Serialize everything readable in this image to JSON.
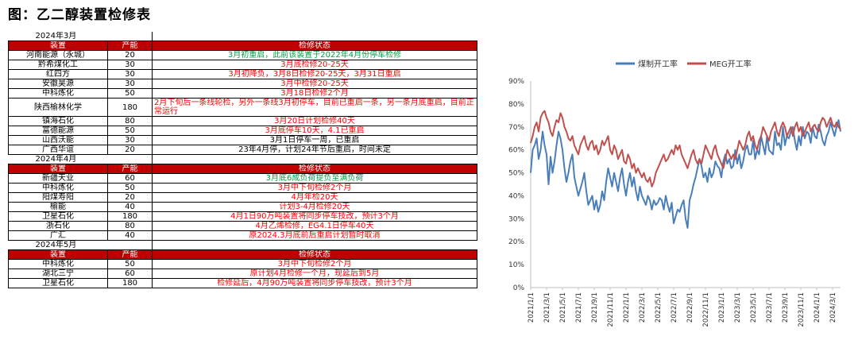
{
  "figure_title": "图：乙二醇装置检修表",
  "table": {
    "sections": [
      {
        "month": "2024年3月",
        "header": [
          "装置",
          "产能",
          "检修状态"
        ],
        "rows": [
          {
            "name": "河南能源（永城）",
            "capacity": "20",
            "status": "3月初重启，此前该装置于2022年4月份停车检修",
            "color": "green"
          },
          {
            "name": "黔希煤化工",
            "capacity": "30",
            "status": "3月底检修20-25天",
            "color": "red"
          },
          {
            "name": "红四方",
            "capacity": "30",
            "status": "3月初降负，3月8日检修20-25天，3月31日重启",
            "color": "red"
          },
          {
            "name": "安徽昊源",
            "capacity": "30",
            "status": "3月中检修20-25天",
            "color": "red"
          },
          {
            "name": "中科炼化",
            "capacity": "50",
            "status": "3月18日检修2个月",
            "color": "red"
          },
          {
            "name": "陕西榆林化学",
            "capacity": "180",
            "status": "2月下旬后一条线轮检，另外一条线3月初停车，目前已重启一条，另一条月底重启，目前正常运行",
            "color": "red",
            "wrap": true
          },
          {
            "name": "镇海石化",
            "capacity": "80",
            "status": "3月20日计划检修40天",
            "color": "red"
          },
          {
            "name": "富德能源",
            "capacity": "50",
            "status": "3月底停车10天，4.1已重启",
            "color": "red"
          },
          {
            "name": "山西沃能",
            "capacity": "30",
            "status": "3月1日停车一周，已重启",
            "color": "black"
          },
          {
            "name": "广西华谊",
            "capacity": "20",
            "status": "23年4月停，计划24年节后重启，时间未定",
            "color": "black"
          }
        ]
      },
      {
        "month": "2024年4月",
        "header": [
          "装置",
          "产能",
          "检修状态"
        ],
        "rows": [
          {
            "name": "新疆天业",
            "capacity": "60",
            "status": "3月底6成负荷提负至满负荷",
            "color": "green"
          },
          {
            "name": "中科炼化",
            "capacity": "50",
            "status": "3月中下旬检修2个月",
            "color": "red"
          },
          {
            "name": "阳煤寿阳",
            "capacity": "20",
            "status": "4月年检20天",
            "color": "red"
          },
          {
            "name": "榆能",
            "capacity": "40",
            "status": "计划3-4月检修20天",
            "color": "red"
          },
          {
            "name": "卫星石化",
            "capacity": "180",
            "status": "4月1日90万吨装置将同步停车技改，预计3个月",
            "color": "red"
          },
          {
            "name": "浙石化",
            "capacity": "80",
            "status": "4月乙烯检修，EG4.1日停车40天",
            "color": "red"
          },
          {
            "name": "广汇",
            "capacity": "40",
            "status": "原2024.3月底前后重启计划暂时取消",
            "color": "red"
          }
        ]
      },
      {
        "month": "2024年5月",
        "header": [
          "装置",
          "产能",
          "检修状态"
        ],
        "rows": [
          {
            "name": "中科炼化",
            "capacity": "50",
            "status": "3月中下旬检修2个月",
            "color": "red"
          },
          {
            "name": "湖北三宁",
            "capacity": "60",
            "status": "原计划4月检修一个月，现延后到5月",
            "color": "red"
          },
          {
            "name": "卫星石化",
            "capacity": "180",
            "status": "检修延后，4月90万吨装置将同步停车技改，预计3个月",
            "color": "red"
          }
        ]
      }
    ]
  },
  "chart_data": {
    "type": "line",
    "ylim": [
      0,
      90
    ],
    "yticks": [
      "0%",
      "10%",
      "20%",
      "30%",
      "40%",
      "50%",
      "60%",
      "70%",
      "80%",
      "90%"
    ],
    "xticks": [
      "2021/1/1",
      "2021/3/1",
      "2021/5/1",
      "2021/7/1",
      "2021/9/1",
      "2021/11/1",
      "2022/1/1",
      "2022/3/1",
      "2022/5/1",
      "2022/7/1",
      "2022/9/1",
      "2022/11/1",
      "2023/1/1",
      "2023/3/1",
      "2023/5/1",
      "2023/7/1",
      "2023/9/1",
      "2023/11/1",
      "2024/1/1",
      "2024/3/1"
    ],
    "legend_position": "top",
    "series": [
      {
        "name": "煤制开工率",
        "color": "#4a7ebb",
        "x_months": [
          0,
          0.5,
          1,
          1.5,
          2,
          2.5,
          3,
          3.5,
          4,
          4.5,
          5,
          5.5,
          6,
          6.5,
          7,
          7.5,
          8,
          8.5,
          9,
          9.5,
          10,
          10.5,
          11,
          11.5,
          12,
          12.5,
          13,
          13.5,
          14,
          14.5,
          15,
          15.5,
          16,
          16.5,
          17,
          17.5,
          18,
          18.5,
          19,
          19.5,
          20,
          20.5,
          21,
          21.5,
          22,
          22.5,
          23,
          23.5,
          24,
          24.5,
          25,
          25.5,
          26,
          26.5,
          27,
          27.5,
          28,
          28.5,
          29,
          29.5,
          30,
          30.5,
          31,
          31.5,
          32,
          32.5,
          33,
          33.5,
          34,
          34.5,
          35,
          35.5,
          36,
          36.5,
          37,
          37.5,
          38,
          38.5,
          39,
          39.5,
          40,
          40.5,
          41,
          41.5,
          42,
          42.5,
          43,
          43.5,
          44,
          44.5,
          45,
          45.5,
          46,
          46.5,
          47,
          47.5,
          48,
          48.5,
          49,
          49.5,
          50,
          50.5,
          51,
          51.5,
          52,
          52.5,
          53,
          53.5,
          54,
          54.5,
          55,
          55.5,
          56,
          56.5,
          57,
          57.5,
          58,
          58.5,
          59,
          59.5,
          60,
          60.5,
          61,
          61.5,
          62,
          62.5,
          63,
          63.5,
          64,
          64.5,
          65,
          65.5,
          66,
          66.5,
          67,
          67.5,
          68,
          68.5,
          69,
          69.5,
          70,
          70.5,
          71,
          71.5,
          72,
          72.5,
          73,
          73.5,
          74,
          74.5,
          75,
          75.5,
          76,
          76.5,
          77,
          77.5,
          78
        ],
        "values": [
          50,
          60,
          62,
          65,
          56,
          60,
          68,
          62,
          58,
          45,
          57,
          50,
          55,
          62,
          68,
          65,
          60,
          52,
          46,
          50,
          55,
          58,
          48,
          44,
          40,
          43,
          46,
          50,
          42,
          36,
          38,
          40,
          34,
          38,
          33,
          36,
          42,
          38,
          46,
          52,
          48,
          44,
          50,
          46,
          42,
          48,
          52,
          45,
          40,
          46,
          50,
          44,
          48,
          42,
          38,
          44,
          40,
          38,
          36,
          40,
          38,
          34,
          38,
          36,
          37,
          39,
          38,
          34,
          40,
          36,
          33,
          37,
          28,
          31,
          34,
          33,
          36,
          38,
          30,
          26,
          38,
          41,
          45,
          48,
          52,
          56,
          53,
          48,
          50,
          46,
          52,
          48,
          50,
          55,
          53,
          52,
          48,
          55,
          58,
          54,
          56,
          52,
          53,
          60,
          54,
          58,
          52,
          55,
          60,
          62,
          58,
          58,
          64,
          56,
          60,
          58,
          66,
          62,
          58,
          66,
          60,
          59,
          58,
          68,
          62,
          63,
          60,
          70,
          62,
          66,
          65,
          68,
          70,
          64,
          60,
          66,
          62,
          70,
          65,
          68,
          67,
          63,
          70,
          66,
          65,
          71,
          68,
          64,
          62,
          66,
          68,
          72,
          69,
          66,
          70,
          73,
          68
        ]
      },
      {
        "name": "MEG开工率",
        "color": "#c0504d",
        "x_months": [
          0,
          0.5,
          1,
          1.5,
          2,
          2.5,
          3,
          3.5,
          4,
          4.5,
          5,
          5.5,
          6,
          6.5,
          7,
          7.5,
          8,
          8.5,
          9,
          9.5,
          10,
          10.5,
          11,
          11.5,
          12,
          12.5,
          13,
          13.5,
          14,
          14.5,
          15,
          15.5,
          16,
          16.5,
          17,
          17.5,
          18,
          18.5,
          19,
          19.5,
          20,
          20.5,
          21,
          21.5,
          22,
          22.5,
          23,
          23.5,
          24,
          24.5,
          25,
          25.5,
          26,
          26.5,
          27,
          27.5,
          28,
          28.5,
          29,
          29.5,
          30,
          30.5,
          31,
          31.5,
          32,
          32.5,
          33,
          33.5,
          34,
          34.5,
          35,
          35.5,
          36,
          36.5,
          37,
          37.5,
          38,
          38.5,
          39,
          39.5,
          40,
          40.5,
          41,
          41.5,
          42,
          42.5,
          43,
          43.5,
          44,
          44.5,
          45,
          45.5,
          46,
          46.5,
          47,
          47.5,
          48,
          48.5,
          49,
          49.5,
          50,
          50.5,
          51,
          51.5,
          52,
          52.5,
          53,
          53.5,
          54,
          54.5,
          55,
          55.5,
          56,
          56.5,
          57,
          57.5,
          58,
          58.5,
          59,
          59.5,
          60,
          60.5,
          61,
          61.5,
          62,
          62.5,
          63,
          63.5,
          64,
          64.5,
          65,
          65.5,
          66,
          66.5,
          67,
          67.5,
          68,
          68.5,
          69,
          69.5,
          70,
          70.5,
          71,
          71.5,
          72,
          72.5,
          73,
          73.5,
          74,
          74.5,
          75,
          75.5,
          76,
          76.5,
          77,
          77.5,
          78
        ],
        "values": [
          63,
          66,
          70,
          72,
          68,
          74,
          76,
          77,
          74,
          72,
          68,
          66,
          70,
          73,
          72,
          76,
          74,
          70,
          68,
          65,
          64,
          66,
          62,
          60,
          58,
          62,
          64,
          66,
          62,
          60,
          63,
          64,
          60,
          62,
          58,
          60,
          64,
          62,
          64,
          66,
          60,
          58,
          62,
          60,
          56,
          58,
          60,
          55,
          54,
          58,
          56,
          52,
          54,
          50,
          52,
          50,
          48,
          50,
          47,
          46,
          48,
          44,
          46,
          50,
          52,
          54,
          56,
          58,
          55,
          56,
          58,
          60,
          58,
          62,
          60,
          62,
          58,
          56,
          54,
          52,
          55,
          58,
          60,
          56,
          54,
          56,
          54,
          58,
          62,
          60,
          58,
          56,
          60,
          62,
          58,
          56,
          54,
          52,
          56,
          60,
          58,
          56,
          58,
          56,
          60,
          64,
          62,
          60,
          62,
          66,
          68,
          64,
          66,
          62,
          60,
          64,
          66,
          70,
          68,
          66,
          64,
          68,
          70,
          72,
          68,
          66,
          70,
          72,
          70,
          66,
          68,
          70,
          66,
          70,
          72,
          68,
          70,
          66,
          68,
          70,
          72,
          68,
          70,
          71,
          69,
          68,
          72,
          74,
          73,
          70,
          72,
          74,
          71,
          70,
          72,
          70,
          69
        ]
      }
    ]
  }
}
